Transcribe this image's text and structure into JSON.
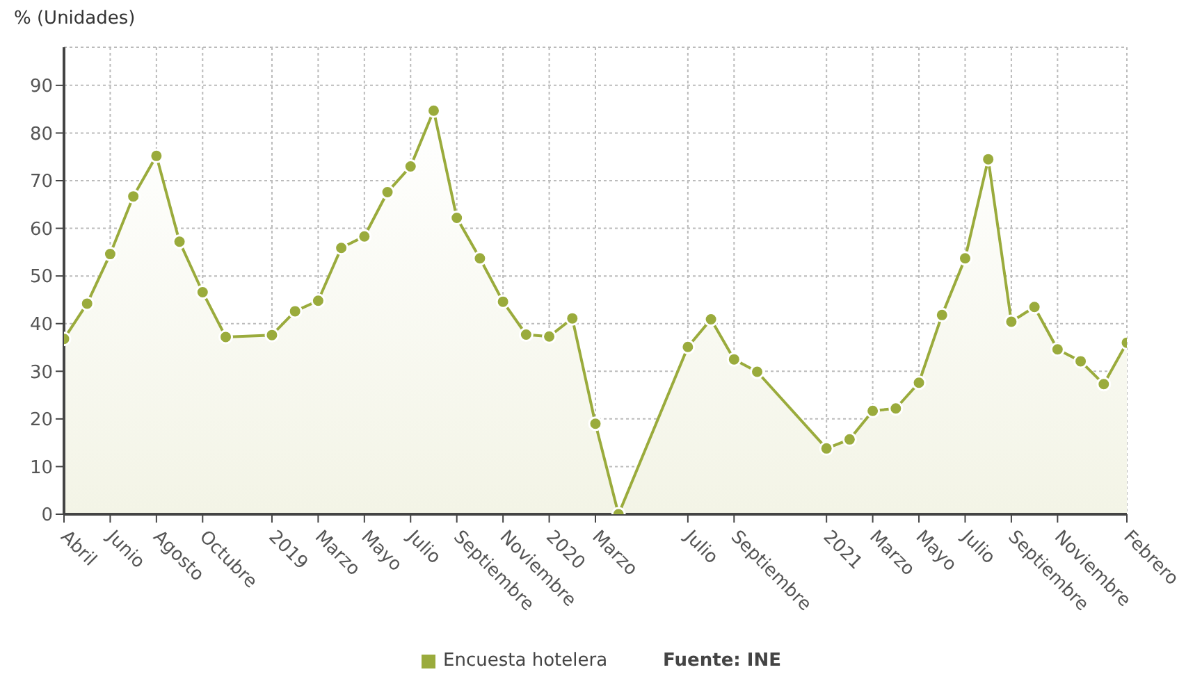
{
  "chart_data": {
    "type": "area",
    "ylabel": "% (Unidades)",
    "categories": [
      "Abril",
      null,
      "Junio",
      null,
      "Agosto",
      null,
      "Octubre",
      null,
      null,
      "2019",
      null,
      "Marzo",
      null,
      "Mayo",
      null,
      "Julio",
      null,
      "Septiembre",
      null,
      "Noviembre",
      null,
      "2020",
      null,
      "Marzo",
      null,
      null,
      null,
      "Julio",
      null,
      "Septiembre",
      null,
      null,
      null,
      "2021",
      null,
      "Marzo",
      null,
      "Mayo",
      null,
      "Julio",
      null,
      "Septiembre",
      null,
      "Noviembre",
      null,
      null,
      "Febrero"
    ],
    "series": [
      {
        "name": "Encuesta hotelera",
        "color": "#9aab3c",
        "values": [
          36.8,
          44.2,
          54.6,
          66.7,
          75.2,
          57.2,
          46.6,
          37.2,
          null,
          37.6,
          42.6,
          44.8,
          55.9,
          58.3,
          67.6,
          73.0,
          84.7,
          62.2,
          53.7,
          44.6,
          37.7,
          37.3,
          41.1,
          19.0,
          0,
          null,
          null,
          35.1,
          40.9,
          32.5,
          29.9,
          null,
          null,
          13.8,
          15.7,
          21.7,
          22.2,
          27.6,
          41.8,
          53.7,
          74.5,
          40.4,
          43.5,
          34.6,
          32.1,
          27.3,
          36.0
        ]
      }
    ],
    "ylim": [
      0,
      98
    ],
    "yticks": [
      0,
      10,
      20,
      30,
      40,
      50,
      60,
      70,
      80,
      90
    ],
    "grid": true,
    "legend": "bottom",
    "marker": "circle",
    "line_style": "solid",
    "annotations": [
      "Fuente: INE"
    ]
  }
}
